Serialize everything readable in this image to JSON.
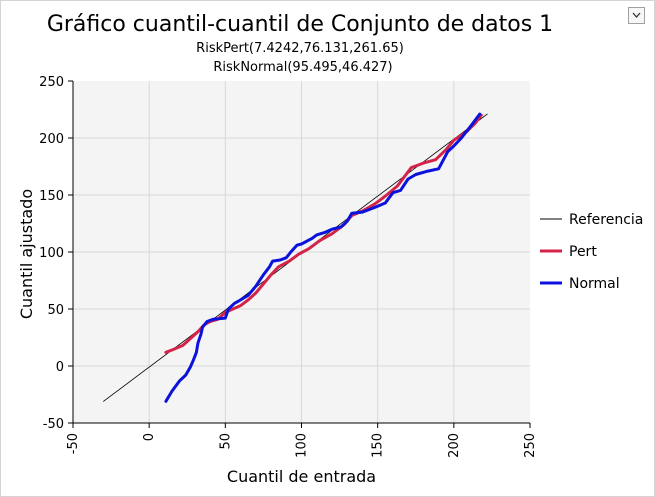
{
  "chart_data": {
    "type": "line",
    "title": "Gráfico cuantil-cuantil de Conjunto de datos 1",
    "subtitle_lines": [
      "RiskPert(7.4242,76.131,261.65)",
      "RiskNormal(95.495,46.427)"
    ],
    "xlabel": "Cuantil de entrada",
    "ylabel": "Cuantil ajustado",
    "xlim": [
      -50,
      250
    ],
    "ylim": [
      -50,
      250
    ],
    "xticks": [
      "-50",
      "0",
      "50",
      "100",
      "150",
      "200",
      "250"
    ],
    "yticks": [
      "250",
      "200",
      "150",
      "100",
      "50",
      "0",
      "-50"
    ],
    "grid": true,
    "legend_position": "right",
    "series": [
      {
        "name": "Referencia",
        "color": "#000000",
        "width": 0.8,
        "points": [
          [
            -30,
            -31
          ],
          [
            222,
            221
          ]
        ]
      },
      {
        "name": "Pert",
        "color": "#d42348",
        "width": 3,
        "points": [
          [
            11,
            12
          ],
          [
            15,
            14
          ],
          [
            22,
            18
          ],
          [
            27,
            24
          ],
          [
            32,
            30
          ],
          [
            36,
            36
          ],
          [
            40,
            39
          ],
          [
            45,
            41
          ],
          [
            50,
            47
          ],
          [
            55,
            50
          ],
          [
            60,
            53
          ],
          [
            65,
            58
          ],
          [
            70,
            64
          ],
          [
            75,
            72
          ],
          [
            80,
            80
          ],
          [
            85,
            87
          ],
          [
            92,
            92
          ],
          [
            98,
            98
          ],
          [
            105,
            103
          ],
          [
            112,
            110
          ],
          [
            120,
            116
          ],
          [
            128,
            124
          ],
          [
            133,
            132
          ],
          [
            140,
            136
          ],
          [
            148,
            142
          ],
          [
            155,
            149
          ],
          [
            163,
            158
          ],
          [
            172,
            174
          ],
          [
            180,
            178
          ],
          [
            188,
            181
          ],
          [
            195,
            190
          ],
          [
            200,
            198
          ],
          [
            208,
            205
          ],
          [
            214,
            213
          ],
          [
            218,
            220
          ]
        ]
      },
      {
        "name": "Normal",
        "color": "#0a12dc",
        "width": 3,
        "points": [
          [
            11,
            -31
          ],
          [
            15,
            -22
          ],
          [
            20,
            -13
          ],
          [
            24,
            -8
          ],
          [
            27,
            -1
          ],
          [
            29,
            5
          ],
          [
            31,
            12
          ],
          [
            32,
            20
          ],
          [
            34,
            28
          ],
          [
            35,
            34
          ],
          [
            38,
            39
          ],
          [
            42,
            41
          ],
          [
            50,
            42
          ],
          [
            52,
            50
          ],
          [
            56,
            55
          ],
          [
            60,
            58
          ],
          [
            65,
            62
          ],
          [
            70,
            70
          ],
          [
            75,
            80
          ],
          [
            79,
            87
          ],
          [
            81,
            92
          ],
          [
            86,
            93
          ],
          [
            90,
            95
          ],
          [
            93,
            100
          ],
          [
            97,
            106
          ],
          [
            100,
            107
          ],
          [
            107,
            112
          ],
          [
            110,
            115
          ],
          [
            115,
            117
          ],
          [
            120,
            120
          ],
          [
            126,
            122
          ],
          [
            130,
            127
          ],
          [
            133,
            134
          ],
          [
            140,
            135
          ],
          [
            148,
            139
          ],
          [
            155,
            143
          ],
          [
            160,
            152
          ],
          [
            165,
            154
          ],
          [
            170,
            164
          ],
          [
            175,
            168
          ],
          [
            183,
            171
          ],
          [
            190,
            173
          ],
          [
            196,
            188
          ],
          [
            200,
            193
          ],
          [
            205,
            200
          ],
          [
            212,
            212
          ],
          [
            217,
            221
          ]
        ]
      }
    ]
  }
}
